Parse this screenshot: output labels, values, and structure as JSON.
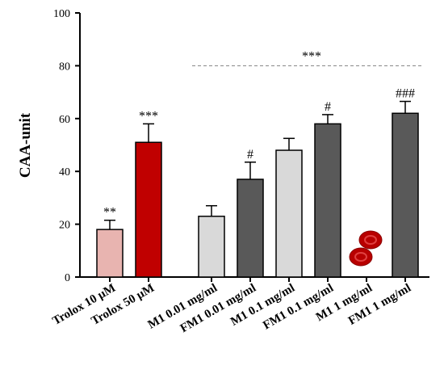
{
  "chart_data": {
    "type": "bar",
    "title": "",
    "xlabel": "",
    "ylabel": "CAA-unit",
    "ylim": [
      0,
      100
    ],
    "yticks": [
      "0",
      "20",
      "40",
      "60",
      "80",
      "100"
    ],
    "grid": false,
    "categories": [
      "Trolox 10 μM",
      "Trolox 50 μM",
      "M1 0.01 mg/ml",
      "FM1 0.01 mg/ml",
      "M1 0.1 mg/ml",
      "FM1 0.1 mg/ml",
      "M1 1 mg/ml",
      "FM1 1 mg/ml"
    ],
    "values": [
      18,
      51,
      23,
      37,
      48,
      58,
      null,
      62
    ],
    "errors": [
      3.5,
      7,
      4,
      6.5,
      4.5,
      3.5,
      null,
      4.5
    ],
    "significance": [
      "**",
      "***",
      "",
      "#",
      "",
      "#",
      "",
      "###"
    ],
    "colors": [
      "#e8b4b0",
      "#c00000",
      "#d9d9d9",
      "#595959",
      "#d9d9d9",
      "#595959",
      null,
      "#595959"
    ],
    "group_bracket": {
      "label": "***",
      "from_category": 2,
      "to_category": 7,
      "level": 80
    },
    "missing_value_marker": {
      "category": 6,
      "icon": "red-blood-cells-icon"
    }
  }
}
